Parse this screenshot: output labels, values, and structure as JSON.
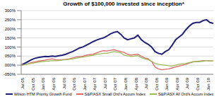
{
  "chart_data": {
    "type": "line",
    "title": "Growth of $100,000 invested since inception*",
    "categories": [
      "Jul 05",
      null,
      null,
      "Oct 05",
      null,
      null,
      "Jan 06",
      null,
      null,
      "Apr 06",
      null,
      null,
      "Jul 06",
      null,
      null,
      "Oct 06",
      null,
      null,
      "Jan 07",
      null,
      null,
      "Apr 07",
      null,
      null,
      "Jul 07",
      null,
      null,
      "Oct 07",
      null,
      null,
      "Jan 08",
      null,
      null,
      "Apr 08",
      null,
      null,
      "Jul 08",
      null,
      null,
      "Oct 08",
      null,
      null,
      "Jan 09",
      null,
      null,
      "Apr 09",
      null,
      null,
      "Jul 09",
      null,
      null,
      "Oct 09",
      null,
      null,
      "Jan 10",
      null,
      null
    ],
    "series": [
      {
        "name": "Wilson HTM Priority Growth Fund",
        "color": "#1f1f7a",
        "values": [
          0,
          10,
          20,
          30,
          38,
          42,
          45,
          48,
          47,
          50,
          48,
          52,
          55,
          60,
          68,
          75,
          85,
          95,
          100,
          110,
          120,
          130,
          138,
          145,
          150,
          160,
          172,
          180,
          185,
          170,
          150,
          140,
          145,
          150,
          165,
          140,
          125,
          115,
          100,
          75,
          65,
          60,
          75,
          85,
          110,
          140,
          155,
          170,
          195,
          215,
          230,
          235,
          235,
          245,
          250,
          235,
          230
        ]
      },
      {
        "name": "S&P/ASX Small Ord's Accum Index",
        "color": "#e06666",
        "values": [
          0,
          3,
          8,
          15,
          18,
          22,
          25,
          28,
          32,
          35,
          30,
          28,
          30,
          32,
          35,
          40,
          45,
          48,
          50,
          55,
          58,
          60,
          68,
          75,
          80,
          78,
          82,
          85,
          80,
          75,
          70,
          60,
          55,
          58,
          60,
          50,
          40,
          35,
          20,
          -10,
          -20,
          -25,
          -22,
          -20,
          -15,
          -10,
          -5,
          0,
          5,
          12,
          18,
          20,
          22,
          25,
          25,
          23,
          25
        ]
      },
      {
        "name": "S&P/ASX All Ord's Accum Index",
        "color": "#9bbb59",
        "values": [
          0,
          3,
          7,
          10,
          14,
          17,
          20,
          22,
          23,
          25,
          24,
          25,
          28,
          30,
          32,
          35,
          38,
          42,
          45,
          48,
          52,
          55,
          60,
          62,
          65,
          65,
          70,
          75,
          72,
          68,
          55,
          52,
          48,
          50,
          52,
          42,
          35,
          30,
          22,
          10,
          5,
          2,
          0,
          -3,
          -5,
          0,
          5,
          8,
          10,
          15,
          18,
          20,
          20,
          22,
          25,
          23,
          25
        ]
      }
    ],
    "ylim": [
      -50,
      300
    ],
    "yticks": [
      {
        "value": -50,
        "label": "-050%"
      },
      {
        "value": 0,
        "label": "000%"
      },
      {
        "value": 50,
        "label": "050%"
      },
      {
        "value": 100,
        "label": "100%"
      },
      {
        "value": 150,
        "label": "150%"
      },
      {
        "value": 200,
        "label": "200%"
      },
      {
        "value": 250,
        "label": "250%"
      },
      {
        "value": 300,
        "label": "300%"
      }
    ],
    "grid": true,
    "legend": "bottom"
  }
}
